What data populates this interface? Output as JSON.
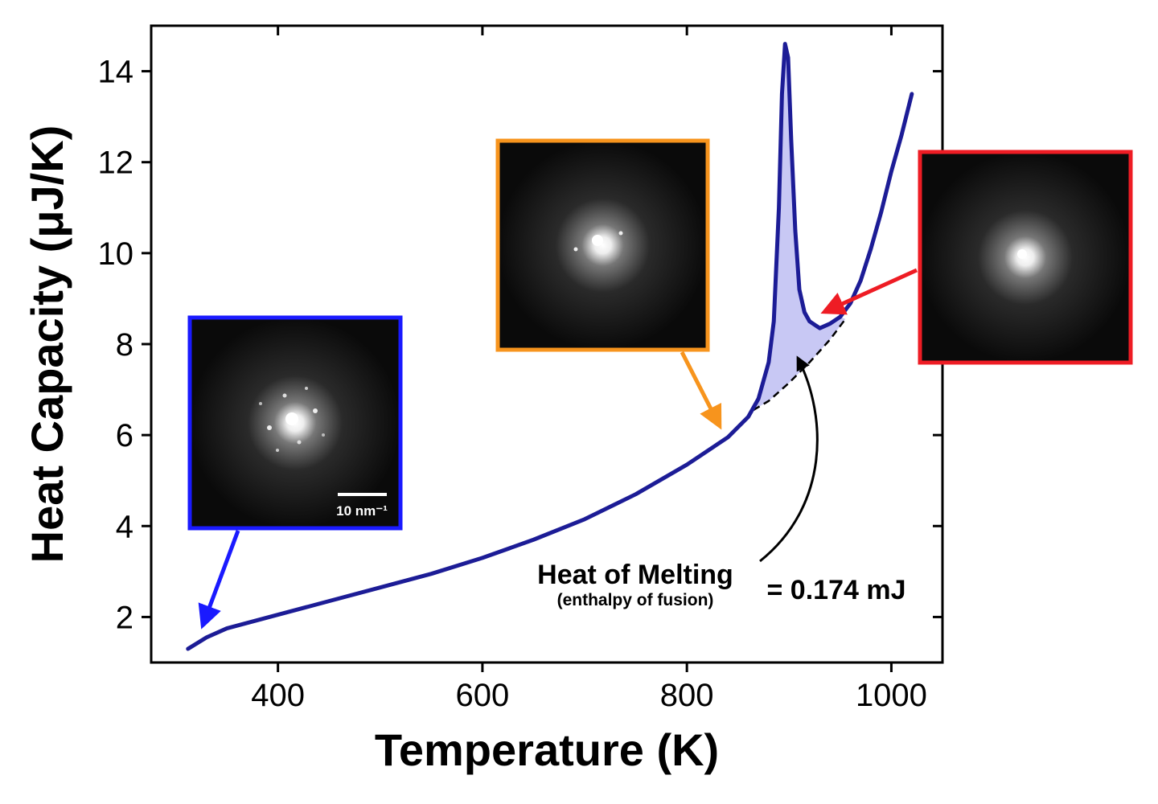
{
  "chart_data": {
    "type": "line",
    "xlabel": "Temperature (K)",
    "ylabel": "Heat Capacity (μJ/K)",
    "x": [
      312,
      330,
      350,
      400,
      450,
      500,
      550,
      600,
      650,
      700,
      750,
      800,
      840,
      860,
      870,
      880,
      885,
      890,
      893,
      896,
      899,
      902,
      906,
      910,
      915,
      920,
      930,
      940,
      950,
      960,
      970,
      980,
      990,
      1000,
      1010,
      1020
    ],
    "values": [
      1.3,
      1.55,
      1.75,
      2.05,
      2.35,
      2.65,
      2.95,
      3.3,
      3.7,
      4.15,
      4.7,
      5.35,
      5.95,
      6.4,
      6.8,
      7.6,
      8.5,
      11,
      13.5,
      14.6,
      14.3,
      12.5,
      10.5,
      9.2,
      8.7,
      8.5,
      8.35,
      8.45,
      8.6,
      8.9,
      9.4,
      10.1,
      10.9,
      11.8,
      12.6,
      13.5
    ],
    "color": "#1c1c96",
    "baseline": {
      "x": [
        865,
        880,
        900,
        920,
        940,
        955
      ],
      "values": [
        6.55,
        6.75,
        7.15,
        7.6,
        8.1,
        8.55
      ]
    },
    "xlim": [
      276,
      1050
    ],
    "ylim": [
      1,
      15
    ],
    "xticks": [
      400,
      600,
      800,
      1000
    ],
    "yticks": [
      2,
      4,
      6,
      8,
      10,
      12,
      14
    ],
    "annotations": {
      "heat_of_melting": "Heat of Melting",
      "enthalpy": "(enthalpy of fusion)",
      "value": "= 0.174 mJ",
      "scale_bar": "10 nm⁻¹"
    }
  }
}
